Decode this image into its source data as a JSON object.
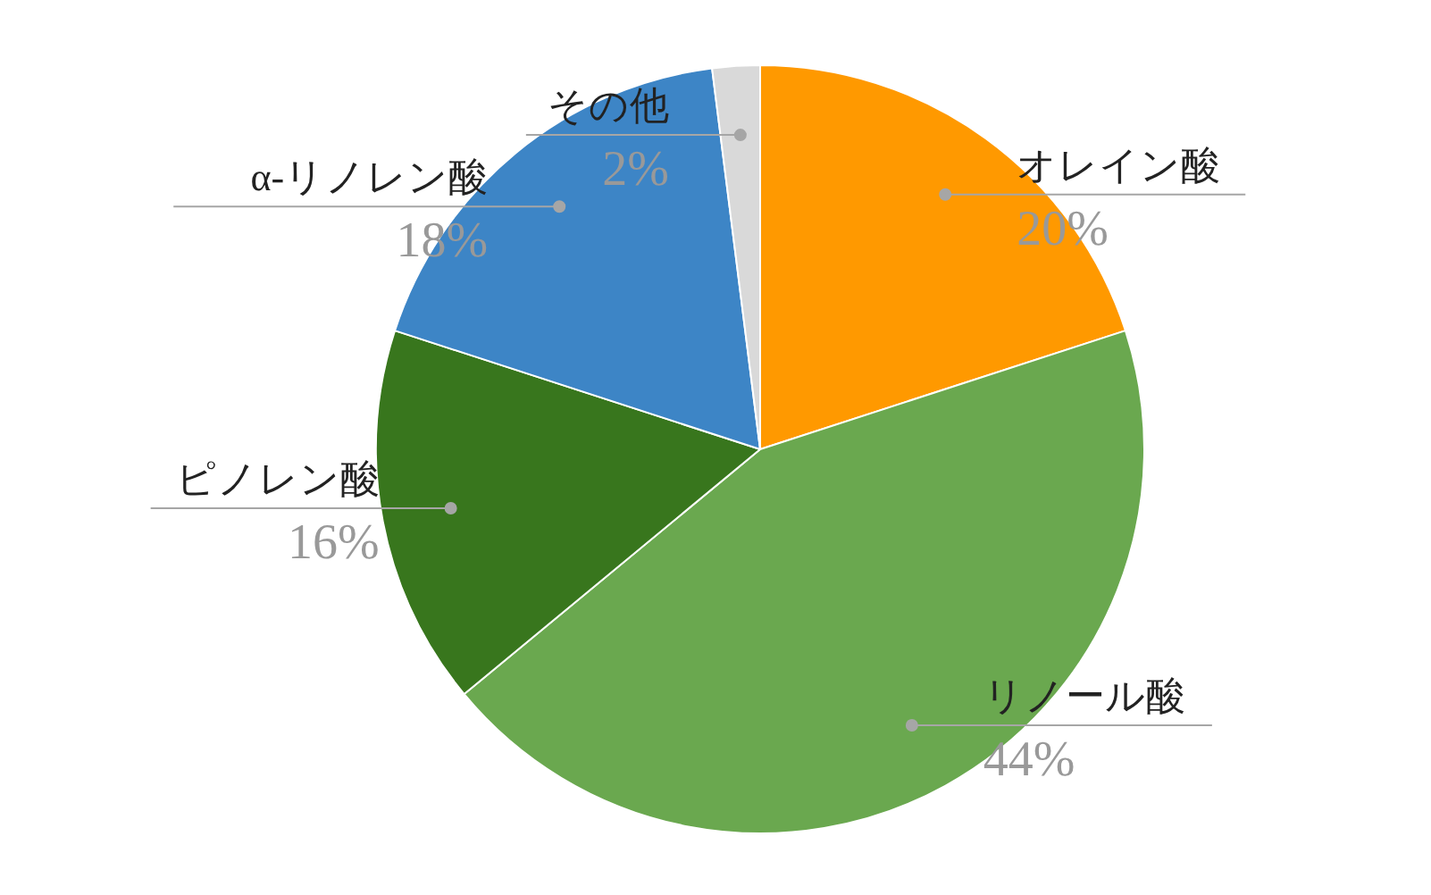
{
  "chart_data": {
    "type": "pie",
    "categories": [
      "オレイン酸",
      "リノール酸",
      "ピノレン酸",
      "α-リノレン酸",
      "その他"
    ],
    "values": [
      20,
      44,
      16,
      18,
      2
    ],
    "colors": [
      "#ff9900",
      "#6aa84f",
      "#38761d",
      "#3d85c6",
      "#d9d9d9"
    ],
    "value_labels": [
      "20%",
      "44%",
      "16%",
      "18%",
      "2%"
    ],
    "legend": false
  }
}
